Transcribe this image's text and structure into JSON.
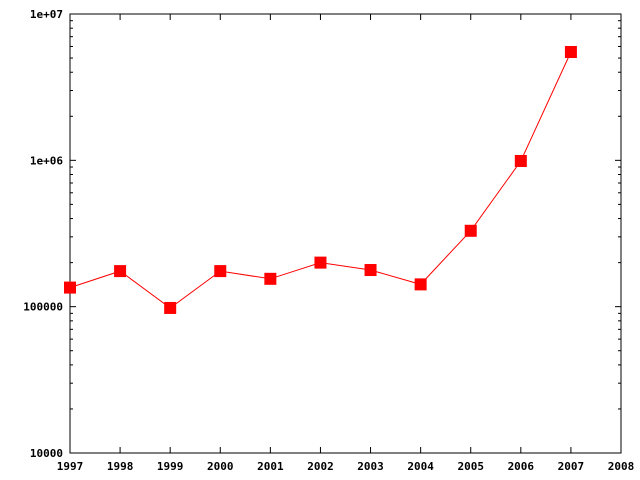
{
  "chart_data": {
    "type": "line",
    "title": "",
    "xlabel": "",
    "ylabel": "",
    "x_scale": "linear",
    "y_scale": "log",
    "xlim": [
      1997,
      2008
    ],
    "ylim": [
      10000,
      10000000
    ],
    "x_ticks": [
      "1997",
      "1998",
      "1999",
      "2000",
      "2001",
      "2002",
      "2003",
      "2004",
      "2005",
      "2006",
      "2007",
      "2008"
    ],
    "y_ticks": [
      {
        "value": 10000,
        "label": "10000"
      },
      {
        "value": 100000,
        "label": "100000"
      },
      {
        "value": 1000000,
        "label": "1e+06"
      },
      {
        "value": 10000000,
        "label": "1e+07"
      }
    ],
    "grid": false,
    "legend": "none",
    "series": [
      {
        "color": "#ff0000",
        "marker": "square",
        "x": [
          1997,
          1998,
          1999,
          2000,
          2001,
          2002,
          2003,
          2004,
          2005,
          2006,
          2007
        ],
        "y": [
          135000,
          175000,
          98000,
          175000,
          155000,
          200000,
          178000,
          142000,
          330000,
          990000,
          5500000
        ]
      }
    ]
  }
}
